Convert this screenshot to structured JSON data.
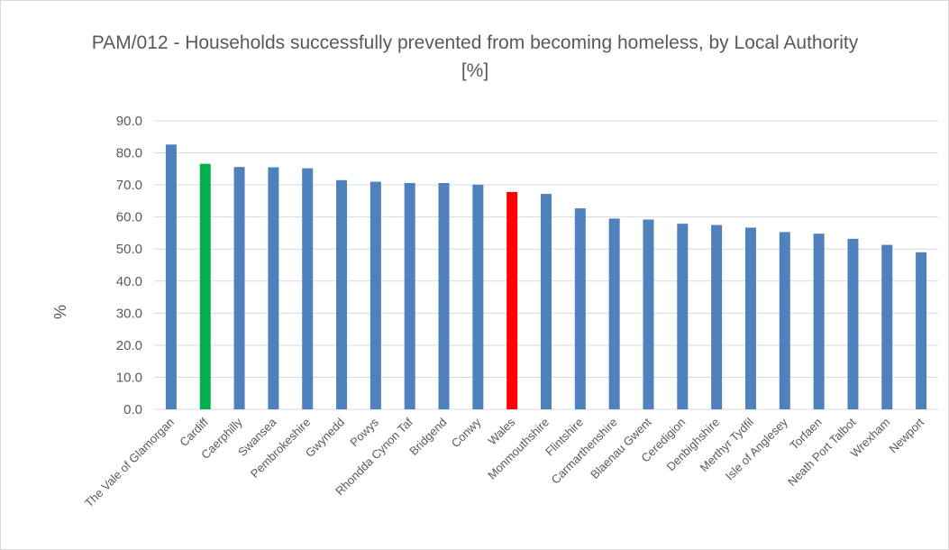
{
  "chart_data": {
    "type": "bar",
    "title_line1": "PAM/012 - Households successfully prevented from becoming homeless, by Local Authority",
    "title_line2": "[%]",
    "xlabel": "",
    "ylabel": "%",
    "ylim": [
      0,
      90
    ],
    "yticks": [
      "0.0",
      "10.0",
      "20.0",
      "30.0",
      "40.0",
      "50.0",
      "60.0",
      "70.0",
      "80.0",
      "90.0"
    ],
    "grid": true,
    "legend": "none",
    "categories": [
      "The Vale of Glamorgan",
      "Cardiff",
      "Caerphilly",
      "Swansea",
      "Pembrokeshire",
      "Gwynedd",
      "Powys",
      "Rhondda Cynon Taf",
      "Bridgend",
      "Conwy",
      "Wales",
      "Monmouthshire",
      "Flintshire",
      "Carmarthenshire",
      "Blaenau Gwent",
      "Ceredigion",
      "Denbighshire",
      "Merthyr Tydfil",
      "Isle of Anglesey",
      "Torfaen",
      "Neath Port Talbot",
      "Wrexham",
      "Newport"
    ],
    "values": [
      82.6,
      76.6,
      75.6,
      75.5,
      75.2,
      71.5,
      71.0,
      70.6,
      70.6,
      70.1,
      67.8,
      67.2,
      62.7,
      59.5,
      59.2,
      57.9,
      57.5,
      56.7,
      55.3,
      54.8,
      53.2,
      51.3,
      49.0
    ],
    "colors": {
      "default": "#4f81bd",
      "Cardiff": "#00b050",
      "Wales": "#ff0000",
      "grid": "#d9d9d9",
      "text": "#595959"
    }
  }
}
